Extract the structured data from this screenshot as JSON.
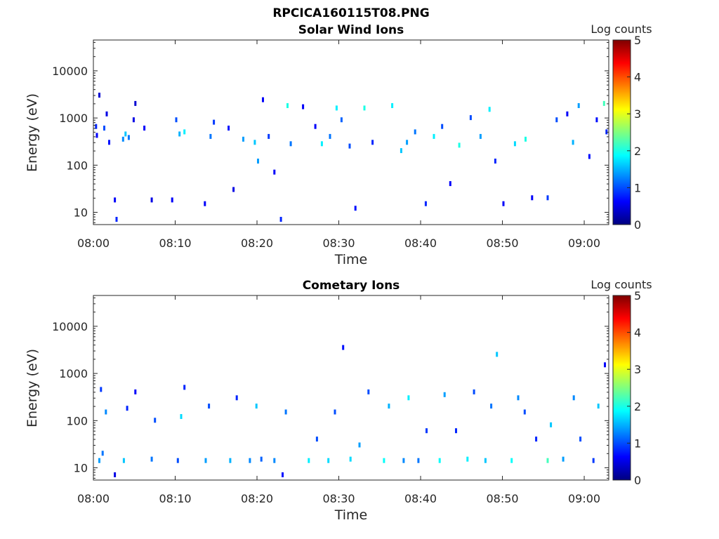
{
  "figure_title": "RPCICA160115T08.PNG",
  "colors": {
    "colormap": [
      "#00007f",
      "#0000ff",
      "#007fff",
      "#00ffff",
      "#7fff7f",
      "#ffff00",
      "#ff7f00",
      "#ff0000",
      "#7f0000"
    ]
  },
  "chart_data": [
    {
      "type": "heatmap",
      "title": "Solar Wind Ions",
      "xlabel": "Time",
      "ylabel": "Energy (eV)",
      "yscale": "log",
      "xlim": [
        "08:00",
        "09:03"
      ],
      "ylim": [
        5.5,
        45000
      ],
      "x_ticks": [
        "08:00",
        "08:10",
        "08:20",
        "08:30",
        "08:40",
        "08:50",
        "09:00"
      ],
      "y_ticks": [
        "10",
        "100",
        "1000",
        "10000"
      ],
      "colorbar": {
        "label": "Log counts",
        "range": [
          0,
          5
        ],
        "ticks": [
          "0",
          "1",
          "2",
          "3",
          "4",
          "5"
        ]
      },
      "cells": [
        {
          "t": 0.2,
          "e": 650,
          "v": 0.8
        },
        {
          "t": 0.3,
          "e": 420,
          "v": 0.6
        },
        {
          "t": 0.6,
          "e": 3000,
          "v": 0.4
        },
        {
          "t": 1.2,
          "e": 600,
          "v": 1.0
        },
        {
          "t": 1.5,
          "e": 1200,
          "v": 0.5
        },
        {
          "t": 1.8,
          "e": 300,
          "v": 0.7
        },
        {
          "t": 2.5,
          "e": 18,
          "v": 0.6
        },
        {
          "t": 2.7,
          "e": 7,
          "v": 0.8
        },
        {
          "t": 3.5,
          "e": 350,
          "v": 1.3
        },
        {
          "t": 3.8,
          "e": 450,
          "v": 1.6
        },
        {
          "t": 4.2,
          "e": 380,
          "v": 1.2
        },
        {
          "t": 4.8,
          "e": 900,
          "v": 0.5
        },
        {
          "t": 5.0,
          "e": 2000,
          "v": 0.4
        },
        {
          "t": 6.1,
          "e": 600,
          "v": 0.6
        },
        {
          "t": 7.0,
          "e": 18,
          "v": 0.5
        },
        {
          "t": 9.5,
          "e": 18,
          "v": 0.6
        },
        {
          "t": 10.0,
          "e": 900,
          "v": 1.0
        },
        {
          "t": 10.4,
          "e": 450,
          "v": 1.5
        },
        {
          "t": 11.0,
          "e": 500,
          "v": 1.8
        },
        {
          "t": 13.5,
          "e": 15,
          "v": 0.6
        },
        {
          "t": 14.2,
          "e": 400,
          "v": 1.2
        },
        {
          "t": 14.6,
          "e": 800,
          "v": 0.9
        },
        {
          "t": 16.4,
          "e": 600,
          "v": 0.7
        },
        {
          "t": 17.0,
          "e": 30,
          "v": 0.5
        },
        {
          "t": 18.2,
          "e": 350,
          "v": 1.4
        },
        {
          "t": 19.6,
          "e": 300,
          "v": 1.6
        },
        {
          "t": 20.0,
          "e": 120,
          "v": 1.4
        },
        {
          "t": 20.6,
          "e": 2400,
          "v": 0.6
        },
        {
          "t": 21.3,
          "e": 400,
          "v": 0.9
        },
        {
          "t": 22.0,
          "e": 70,
          "v": 0.6
        },
        {
          "t": 22.8,
          "e": 7,
          "v": 0.8
        },
        {
          "t": 23.6,
          "e": 1800,
          "v": 2.0
        },
        {
          "t": 24.0,
          "e": 280,
          "v": 1.2
        },
        {
          "t": 25.5,
          "e": 1700,
          "v": 0.6
        },
        {
          "t": 27.0,
          "e": 650,
          "v": 0.6
        },
        {
          "t": 27.8,
          "e": 280,
          "v": 1.8
        },
        {
          "t": 28.8,
          "e": 400,
          "v": 1.2
        },
        {
          "t": 29.6,
          "e": 1600,
          "v": 1.8
        },
        {
          "t": 30.2,
          "e": 900,
          "v": 1.1
        },
        {
          "t": 31.2,
          "e": 250,
          "v": 1.0
        },
        {
          "t": 31.9,
          "e": 12,
          "v": 0.7
        },
        {
          "t": 33.0,
          "e": 1600,
          "v": 2.0
        },
        {
          "t": 34.0,
          "e": 300,
          "v": 0.8
        },
        {
          "t": 36.4,
          "e": 1800,
          "v": 1.8
        },
        {
          "t": 37.5,
          "e": 200,
          "v": 1.6
        },
        {
          "t": 38.2,
          "e": 300,
          "v": 1.4
        },
        {
          "t": 39.2,
          "e": 500,
          "v": 1.2
        },
        {
          "t": 40.5,
          "e": 15,
          "v": 0.8
        },
        {
          "t": 41.5,
          "e": 400,
          "v": 1.8
        },
        {
          "t": 42.5,
          "e": 650,
          "v": 1.0
        },
        {
          "t": 43.5,
          "e": 40,
          "v": 0.6
        },
        {
          "t": 44.6,
          "e": 260,
          "v": 2.0
        },
        {
          "t": 46.0,
          "e": 1000,
          "v": 1.0
        },
        {
          "t": 47.2,
          "e": 400,
          "v": 1.4
        },
        {
          "t": 48.3,
          "e": 1500,
          "v": 1.8
        },
        {
          "t": 49.0,
          "e": 120,
          "v": 0.8
        },
        {
          "t": 50.0,
          "e": 15,
          "v": 0.6
        },
        {
          "t": 51.4,
          "e": 280,
          "v": 1.7
        },
        {
          "t": 52.7,
          "e": 350,
          "v": 2.0
        },
        {
          "t": 53.5,
          "e": 20,
          "v": 0.6
        },
        {
          "t": 55.4,
          "e": 20,
          "v": 0.9
        },
        {
          "t": 56.5,
          "e": 900,
          "v": 1.0
        },
        {
          "t": 57.8,
          "e": 1200,
          "v": 0.6
        },
        {
          "t": 58.5,
          "e": 300,
          "v": 1.5
        },
        {
          "t": 59.2,
          "e": 1800,
          "v": 1.4
        },
        {
          "t": 60.5,
          "e": 150,
          "v": 0.7
        },
        {
          "t": 61.4,
          "e": 900,
          "v": 0.7
        },
        {
          "t": 62.3,
          "e": 2000,
          "v": 2.2
        },
        {
          "t": 62.6,
          "e": 500,
          "v": 0.8
        }
      ]
    },
    {
      "type": "heatmap",
      "title": "Cometary Ions",
      "xlabel": "Time",
      "ylabel": "Energy (eV)",
      "yscale": "log",
      "xlim": [
        "08:00",
        "09:03"
      ],
      "ylim": [
        5.5,
        45000
      ],
      "x_ticks": [
        "08:00",
        "08:10",
        "08:20",
        "08:30",
        "08:40",
        "08:50",
        "09:00"
      ],
      "y_ticks": [
        "10",
        "100",
        "1000",
        "10000"
      ],
      "colorbar": {
        "label": "Log counts",
        "range": [
          0,
          5
        ],
        "ticks": [
          "0",
          "1",
          "2",
          "3",
          "4",
          "5"
        ]
      },
      "cells": [
        {
          "t": 0.6,
          "e": 14,
          "v": 1.4
        },
        {
          "t": 1.0,
          "e": 20,
          "v": 1.2
        },
        {
          "t": 0.8,
          "e": 450,
          "v": 0.9
        },
        {
          "t": 1.4,
          "e": 150,
          "v": 1.3
        },
        {
          "t": 2.5,
          "e": 7,
          "v": 0.5
        },
        {
          "t": 3.6,
          "e": 14,
          "v": 1.6
        },
        {
          "t": 4.0,
          "e": 180,
          "v": 0.8
        },
        {
          "t": 5.0,
          "e": 400,
          "v": 0.6
        },
        {
          "t": 7.0,
          "e": 15,
          "v": 1.2
        },
        {
          "t": 7.4,
          "e": 100,
          "v": 1.0
        },
        {
          "t": 10.2,
          "e": 14,
          "v": 1.0
        },
        {
          "t": 10.6,
          "e": 120,
          "v": 1.7
        },
        {
          "t": 11.0,
          "e": 500,
          "v": 0.8
        },
        {
          "t": 13.6,
          "e": 14,
          "v": 1.4
        },
        {
          "t": 14.0,
          "e": 200,
          "v": 1.0
        },
        {
          "t": 16.6,
          "e": 14,
          "v": 1.5
        },
        {
          "t": 17.4,
          "e": 300,
          "v": 0.8
        },
        {
          "t": 19.0,
          "e": 14,
          "v": 1.3
        },
        {
          "t": 19.8,
          "e": 200,
          "v": 1.6
        },
        {
          "t": 20.4,
          "e": 15,
          "v": 1.1
        },
        {
          "t": 22.0,
          "e": 14,
          "v": 1.3
        },
        {
          "t": 23.0,
          "e": 7,
          "v": 0.7
        },
        {
          "t": 23.4,
          "e": 150,
          "v": 1.2
        },
        {
          "t": 26.2,
          "e": 14,
          "v": 1.8
        },
        {
          "t": 27.2,
          "e": 40,
          "v": 1.0
        },
        {
          "t": 28.6,
          "e": 14,
          "v": 1.7
        },
        {
          "t": 29.4,
          "e": 150,
          "v": 1.0
        },
        {
          "t": 30.4,
          "e": 3500,
          "v": 0.7
        },
        {
          "t": 31.3,
          "e": 15,
          "v": 1.7
        },
        {
          "t": 32.4,
          "e": 30,
          "v": 1.4
        },
        {
          "t": 33.5,
          "e": 400,
          "v": 1.0
        },
        {
          "t": 35.4,
          "e": 14,
          "v": 1.9
        },
        {
          "t": 36.0,
          "e": 200,
          "v": 1.5
        },
        {
          "t": 37.8,
          "e": 14,
          "v": 1.3
        },
        {
          "t": 38.4,
          "e": 300,
          "v": 1.8
        },
        {
          "t": 39.6,
          "e": 14,
          "v": 1.2
        },
        {
          "t": 40.6,
          "e": 60,
          "v": 0.9
        },
        {
          "t": 42.2,
          "e": 14,
          "v": 1.9
        },
        {
          "t": 42.8,
          "e": 350,
          "v": 1.4
        },
        {
          "t": 44.2,
          "e": 60,
          "v": 0.8
        },
        {
          "t": 45.6,
          "e": 15,
          "v": 1.8
        },
        {
          "t": 46.4,
          "e": 400,
          "v": 1.0
        },
        {
          "t": 47.8,
          "e": 14,
          "v": 1.6
        },
        {
          "t": 48.5,
          "e": 200,
          "v": 1.2
        },
        {
          "t": 49.2,
          "e": 2500,
          "v": 1.6
        },
        {
          "t": 51.0,
          "e": 14,
          "v": 1.9
        },
        {
          "t": 51.8,
          "e": 300,
          "v": 1.3
        },
        {
          "t": 52.6,
          "e": 150,
          "v": 1.0
        },
        {
          "t": 54.0,
          "e": 40,
          "v": 0.8
        },
        {
          "t": 55.4,
          "e": 14,
          "v": 2.2
        },
        {
          "t": 55.8,
          "e": 80,
          "v": 1.6
        },
        {
          "t": 57.3,
          "e": 15,
          "v": 1.4
        },
        {
          "t": 58.6,
          "e": 300,
          "v": 1.3
        },
        {
          "t": 59.4,
          "e": 40,
          "v": 1.0
        },
        {
          "t": 61.0,
          "e": 14,
          "v": 0.9
        },
        {
          "t": 61.6,
          "e": 200,
          "v": 1.6
        },
        {
          "t": 62.4,
          "e": 1500,
          "v": 0.6
        }
      ]
    }
  ]
}
